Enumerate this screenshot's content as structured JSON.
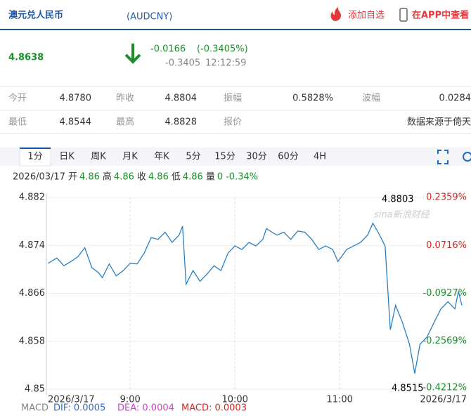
{
  "header": {
    "title": "澳元兑人民币",
    "code": "(AUDCNY)",
    "add_watch": "添加自选",
    "app_view": "在APP中查看"
  },
  "quote": {
    "price": "4.8638",
    "change": "-0.0166",
    "change_pct": "(-0.3405%)",
    "sub_change": "-0.3405",
    "time": "12:12:59"
  },
  "stats": [
    [
      {
        "label": "今开",
        "value": "4.8780"
      },
      {
        "label": "昨收",
        "value": "4.8804"
      },
      {
        "label": "振幅",
        "value": "0.5828%"
      },
      {
        "label": "波幅",
        "value": "0.0284"
      }
    ],
    [
      {
        "label": "最低",
        "value": "4.8544"
      },
      {
        "label": "最高",
        "value": "4.8828"
      },
      {
        "label": "报价"
      }
    ]
  ],
  "source_note": "数据来源于倚天",
  "tabs": [
    "1分",
    "日K",
    "周K",
    "月K",
    "年K",
    "5分",
    "15分",
    "30分",
    "60分",
    "4H"
  ],
  "info": {
    "date": "2026/03/17",
    "items": [
      {
        "label": "开",
        "value": "4.86"
      },
      {
        "label": "高",
        "value": "4.86"
      },
      {
        "label": "收",
        "value": "4.86"
      },
      {
        "label": "低",
        "value": "4.86"
      },
      {
        "label": "量",
        "value": "0"
      }
    ],
    "change": "-0.34%"
  },
  "chart_data": {
    "type": "line",
    "color": "#2a7fc1",
    "x": [
      "8:13",
      "8:18",
      "8:22",
      "8:26",
      "8:30",
      "8:34",
      "8:38",
      "8:42",
      "8:44",
      "8:48",
      "8:52",
      "8:56",
      "9:00",
      "9:04",
      "9:08",
      "9:12",
      "9:16",
      "9:20",
      "9:24",
      "9:28",
      "9:30",
      "9:32",
      "9:36",
      "9:40",
      "9:44",
      "9:48",
      "9:52",
      "9:56",
      "10:00",
      "10:04",
      "10:08",
      "10:12",
      "10:16",
      "10:18",
      "10:24",
      "10:28",
      "10:32",
      "10:36",
      "10:40",
      "10:44",
      "10:48",
      "10:52",
      "10:56",
      "10:59",
      "11:04",
      "11:08",
      "11:12",
      "11:16",
      "11:19",
      "11:22",
      "11:26",
      "11:29",
      "11:32",
      "11:36",
      "11:40",
      "11:43",
      "11:46",
      "11:50",
      "11:54",
      "11:58",
      "12:02",
      "12:06",
      "12:08",
      "12:10"
    ],
    "values": [
      4.871,
      4.8719,
      4.8706,
      4.8713,
      4.8721,
      4.8736,
      4.8703,
      4.8694,
      4.8686,
      4.8709,
      4.8689,
      4.8698,
      4.871,
      4.8709,
      4.8727,
      4.8753,
      4.875,
      4.8762,
      4.8745,
      4.8757,
      4.8772,
      4.8675,
      4.8698,
      4.868,
      4.8692,
      4.8706,
      4.8698,
      4.8727,
      4.8739,
      4.8733,
      4.8745,
      4.8739,
      4.875,
      4.8768,
      4.8757,
      4.8762,
      4.875,
      4.8764,
      4.8762,
      4.875,
      4.8733,
      4.8739,
      4.8733,
      4.8713,
      4.8733,
      4.8739,
      4.8745,
      4.8757,
      4.8777,
      4.8762,
      4.8739,
      4.8599,
      4.864,
      4.8611,
      4.8575,
      4.8526,
      4.8575,
      4.8587,
      4.8611,
      4.8634,
      4.8646,
      4.8634,
      4.8663,
      4.864
    ],
    "xlim": [
      "8:12",
      "12:12"
    ],
    "xticks": [
      "9:00",
      "10:00",
      "11:00"
    ],
    "x_date_labels": [
      "2026/3/17",
      "2026/3/17"
    ],
    "ylim": [
      4.85,
      4.882
    ],
    "yticks": [
      4.882,
      4.874,
      4.866,
      4.858,
      4.85
    ],
    "y2lim": [
      -0.4212,
      0.2359
    ],
    "y2ticks": [
      {
        "value": 0.2359,
        "label": "0.2359%"
      },
      {
        "value": 0.0716,
        "label": "0.0716%"
      },
      {
        "value": -0.0927,
        "label": "-0.0927%"
      },
      {
        "value": -0.2569,
        "label": "-0.2569%"
      },
      {
        "value": -0.4212,
        "label": "-0.4212%"
      }
    ],
    "grid": true,
    "annotations": [
      {
        "text": "4.8803"
      },
      {
        "text": "4.8515"
      }
    ],
    "watermark": "sina新浪财经"
  },
  "macd": {
    "title": "MACD",
    "dif": "DIF: 0.0005",
    "dea": "DEA: 0.0004",
    "macd": "MACD: 0.0003"
  }
}
